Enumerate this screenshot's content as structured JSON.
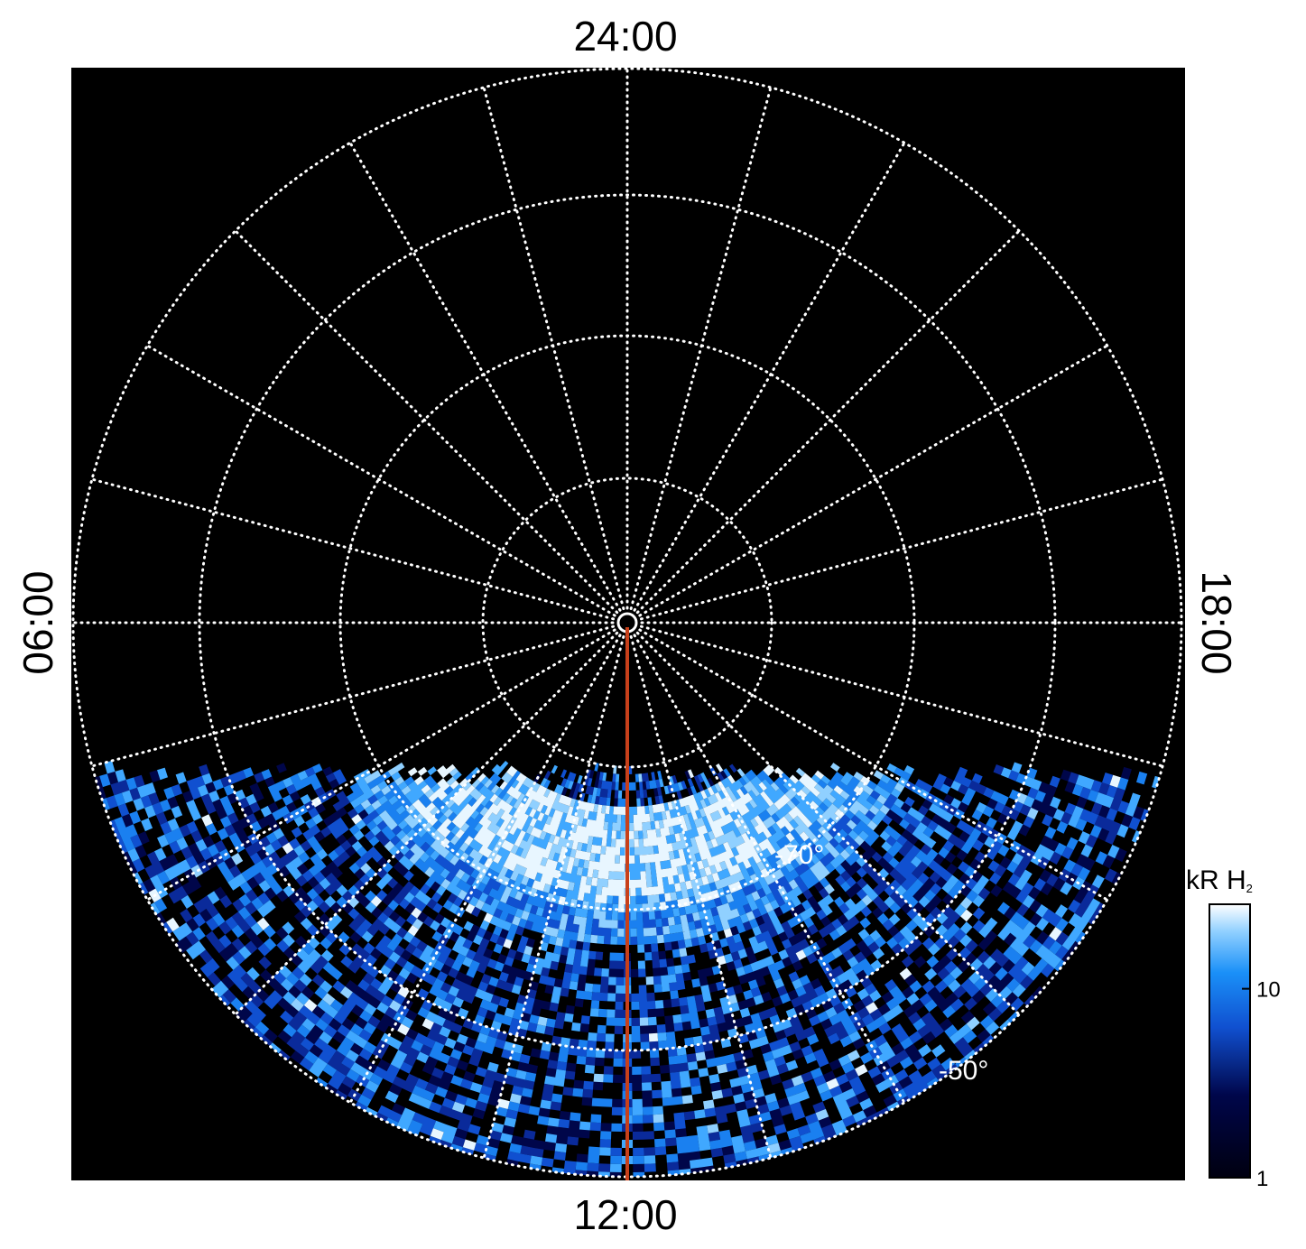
{
  "local_time_labels": {
    "top": "24:00",
    "bottom": "12:00",
    "left": "06:00",
    "right": "18:00"
  },
  "latitude_labels": [
    "-70°",
    "-50°"
  ],
  "colorbar": {
    "label": "kR H",
    "label_subscript": "2",
    "scale": "log",
    "range": [
      1,
      28
    ],
    "ticks": [
      1,
      10
    ]
  }
}
